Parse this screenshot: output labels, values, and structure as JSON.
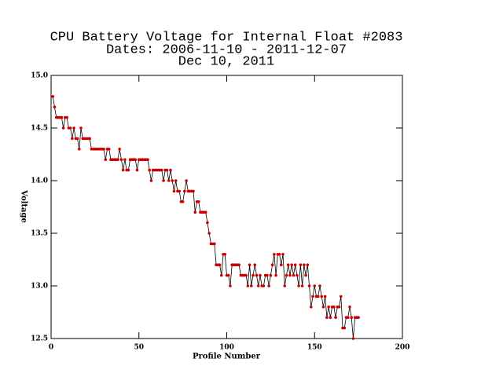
{
  "chart_data": {
    "type": "line",
    "title": [
      "CPU Battery Voltage for Internal Float #2083",
      "Dates:  2006-11-10 -  2011-12-07",
      "Dec 10, 2011"
    ],
    "xlabel": "Profile Number",
    "ylabel": "Voltage",
    "x": [
      1,
      2,
      3,
      4,
      5,
      6,
      7,
      8,
      9,
      10,
      11,
      12,
      13,
      14,
      15,
      16,
      17,
      18,
      19,
      20,
      21,
      22,
      23,
      24,
      25,
      26,
      27,
      28,
      29,
      30,
      31,
      32,
      33,
      34,
      35,
      36,
      37,
      38,
      39,
      40,
      41,
      42,
      43,
      44,
      45,
      46,
      47,
      48,
      49,
      50,
      51,
      52,
      53,
      54,
      55,
      56,
      57,
      58,
      59,
      60,
      61,
      62,
      63,
      64,
      65,
      66,
      67,
      68,
      69,
      70,
      71,
      72,
      73,
      74,
      75,
      76,
      77,
      78,
      79,
      80,
      81,
      82,
      83,
      84,
      85,
      86,
      87,
      88,
      89,
      90,
      91,
      92,
      93,
      94,
      95,
      96,
      97,
      98,
      99,
      100,
      101,
      102,
      103,
      104,
      105,
      106,
      107,
      108,
      109,
      110,
      111,
      112,
      113,
      114,
      115,
      116,
      117,
      118,
      119,
      120,
      121,
      122,
      123,
      124,
      125,
      126,
      127,
      128,
      129,
      130,
      131,
      132,
      133,
      134,
      135,
      136,
      137,
      138,
      139,
      140,
      141,
      142,
      143,
      144,
      145,
      146,
      147,
      148,
      149,
      150,
      151,
      152,
      153,
      154,
      155,
      156,
      157,
      158,
      159,
      160,
      161,
      162,
      163,
      164,
      165,
      166,
      167,
      168,
      169,
      170,
      171,
      172,
      173,
      174,
      175
    ],
    "series": [
      {
        "name": "Voltage",
        "color": "#000000",
        "marker_color": "#cc0000",
        "values": [
          14.8,
          14.7,
          14.6,
          14.6,
          14.6,
          14.6,
          14.5,
          14.6,
          14.6,
          14.5,
          14.5,
          14.4,
          14.5,
          14.4,
          14.4,
          14.3,
          14.5,
          14.4,
          14.4,
          14.4,
          14.4,
          14.4,
          14.3,
          14.3,
          14.3,
          14.3,
          14.3,
          14.3,
          14.3,
          14.3,
          14.2,
          14.3,
          14.3,
          14.2,
          14.2,
          14.2,
          14.2,
          14.2,
          14.3,
          14.2,
          14.1,
          14.2,
          14.1,
          14.1,
          14.2,
          14.2,
          14.2,
          14.2,
          14.1,
          14.2,
          14.2,
          14.2,
          14.2,
          14.2,
          14.2,
          14.1,
          14.0,
          14.1,
          14.1,
          14.1,
          14.1,
          14.1,
          14.1,
          14.0,
          14.1,
          14.1,
          14.0,
          14.1,
          14.0,
          13.9,
          14.0,
          13.9,
          13.9,
          13.8,
          13.8,
          13.9,
          14.0,
          13.9,
          13.9,
          13.9,
          13.9,
          13.7,
          13.8,
          13.8,
          13.7,
          13.7,
          13.7,
          13.7,
          13.6,
          13.5,
          13.4,
          13.4,
          13.4,
          13.2,
          13.2,
          13.2,
          13.1,
          13.3,
          13.3,
          13.1,
          13.1,
          13.0,
          13.2,
          13.2,
          13.2,
          13.2,
          13.2,
          13.1,
          13.1,
          13.1,
          13.1,
          13.0,
          13.2,
          13.0,
          13.1,
          13.2,
          13.1,
          13.0,
          13.1,
          13.0,
          13.0,
          13.1,
          13.1,
          13.0,
          13.1,
          13.2,
          13.3,
          13.1,
          13.3,
          13.3,
          13.2,
          13.3,
          13.0,
          13.1,
          13.2,
          13.1,
          13.2,
          13.1,
          13.2,
          13.1,
          13.0,
          13.2,
          13.0,
          13.2,
          13.1,
          13.2,
          13.0,
          12.8,
          12.9,
          13.0,
          12.9,
          12.9,
          13.0,
          12.9,
          12.8,
          12.9,
          12.7,
          12.8,
          12.7,
          12.8,
          12.8,
          12.7,
          12.8,
          12.8,
          12.9,
          12.6,
          12.6,
          12.7,
          12.7,
          12.8,
          12.7,
          12.5,
          12.7,
          12.7,
          12.7
        ]
      }
    ],
    "xlim": [
      0,
      200
    ],
    "xticks": [
      0,
      50,
      100,
      150,
      200
    ],
    "ylim": [
      12.5,
      15.0
    ],
    "yticks": [
      {
        "value": 12.5,
        "label": "12.5"
      },
      {
        "value": 13.0,
        "label": "13.0"
      },
      {
        "value": 13.5,
        "label": "13.5"
      },
      {
        "value": 14.0,
        "label": "14.0"
      },
      {
        "value": 14.5,
        "label": "14.5"
      },
      {
        "value": 15.0,
        "label": "15.0"
      }
    ]
  }
}
